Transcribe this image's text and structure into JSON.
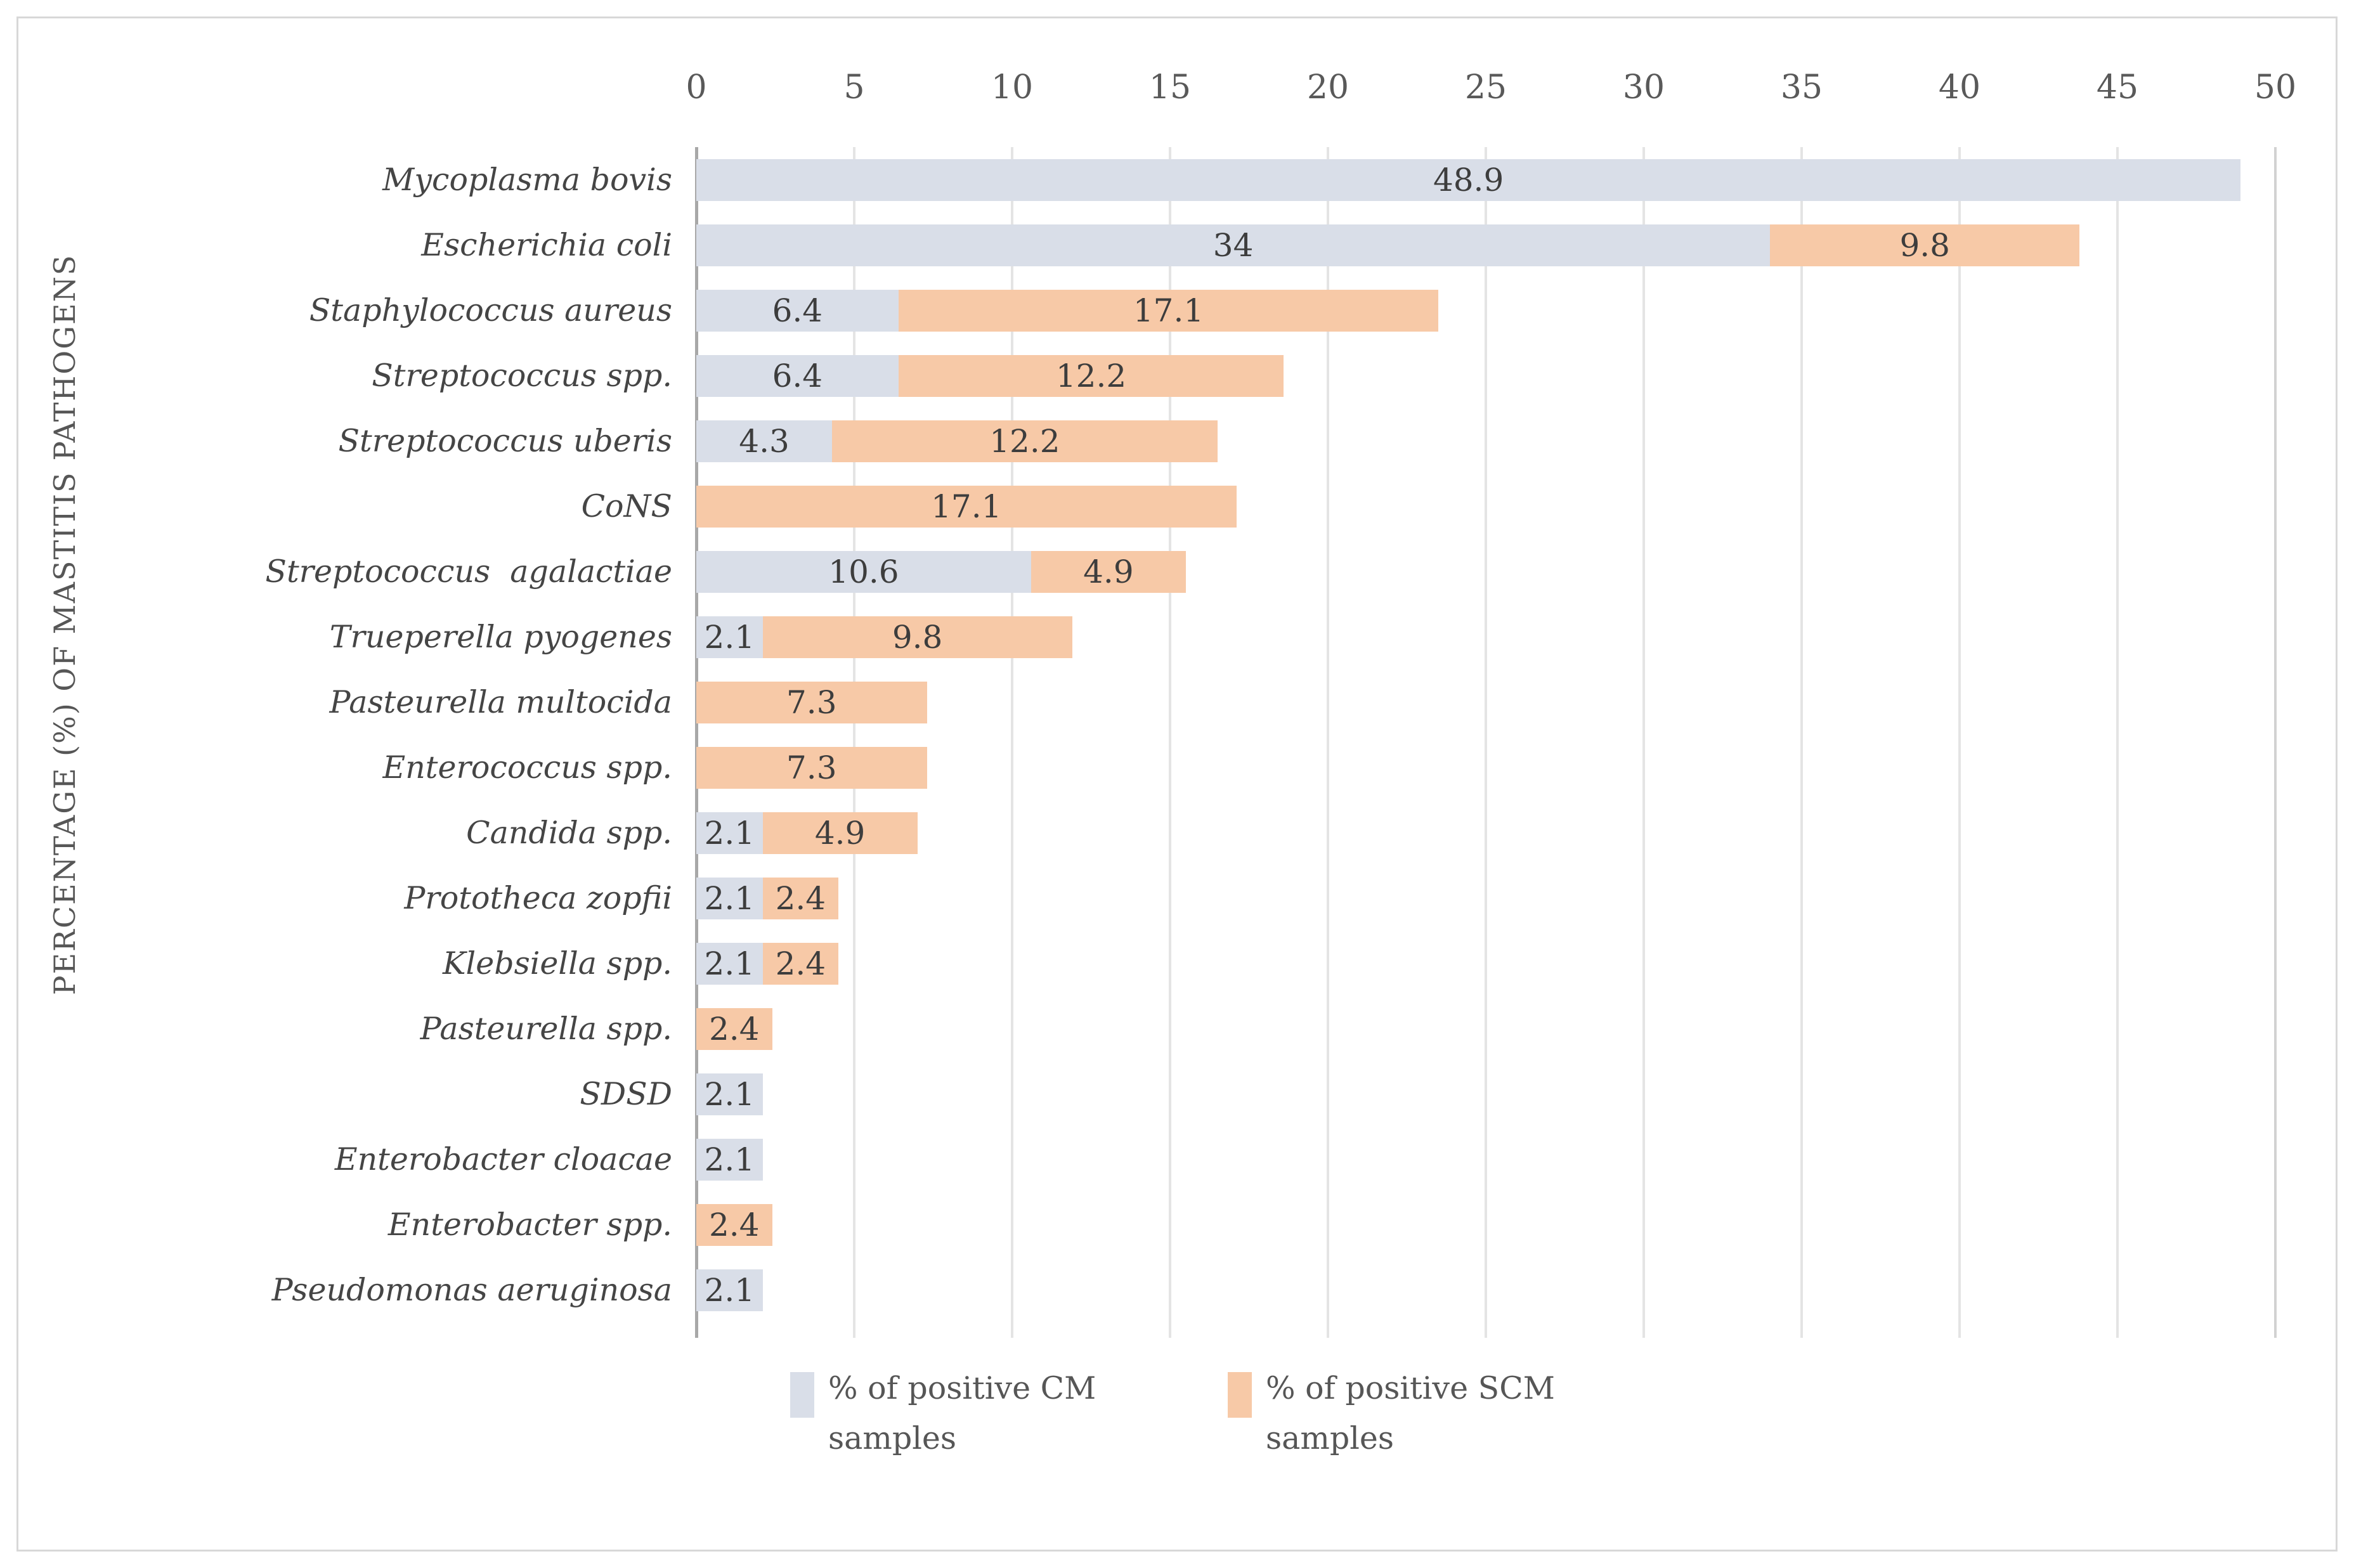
{
  "figure": {
    "background": "#ffffff",
    "border_color": "#d8d8d8"
  },
  "chart_data": {
    "type": "bar",
    "orientation": "horizontal",
    "stacked": true,
    "title": "",
    "xlabel": "",
    "ylabel": "PERCENTAGE (%) OF MASTITIS PATHOGENS",
    "xlim": [
      0,
      50
    ],
    "x_ticks": [
      0,
      5,
      10,
      15,
      20,
      25,
      30,
      35,
      40,
      45,
      50
    ],
    "grid": "vertical",
    "legend_position": "bottom",
    "categories": [
      "Mycoplasma bovis",
      "Escherichia coli",
      "Staphylococcus aureus",
      "Streptococcus spp.",
      "Streptococcus uberis",
      "CoNS",
      "Streptococcus  agalactiae",
      "Trueperella pyogenes",
      "Pasteurella multocida",
      "Enterococcus spp.",
      "Candida spp.",
      "Prototheca zopfii",
      "Klebsiella spp.",
      "Pasteurella spp.",
      "SDSD",
      "Enterobacter cloacae",
      "Enterobacter spp.",
      "Pseudomonas aeruginosa"
    ],
    "series": [
      {
        "name": "% of positive CM samples",
        "color": "#d9dee8",
        "values": [
          48.9,
          34,
          6.4,
          6.4,
          4.3,
          null,
          10.6,
          2.1,
          null,
          null,
          2.1,
          2.1,
          2.1,
          null,
          2.1,
          2.1,
          null,
          2.1
        ]
      },
      {
        "name": "% of positive SCM samples",
        "color": "#f7c9a7",
        "values": [
          null,
          9.8,
          17.1,
          12.2,
          12.2,
          17.1,
          4.9,
          9.8,
          7.3,
          7.3,
          4.9,
          2.4,
          2.4,
          2.4,
          null,
          null,
          2.4,
          null
        ]
      }
    ],
    "value_label_color": "#3d3d3d",
    "tick_label_color": "#595959",
    "gridline_color": "#e4e4e4",
    "zero_axis_color": "#a8a8a8"
  }
}
